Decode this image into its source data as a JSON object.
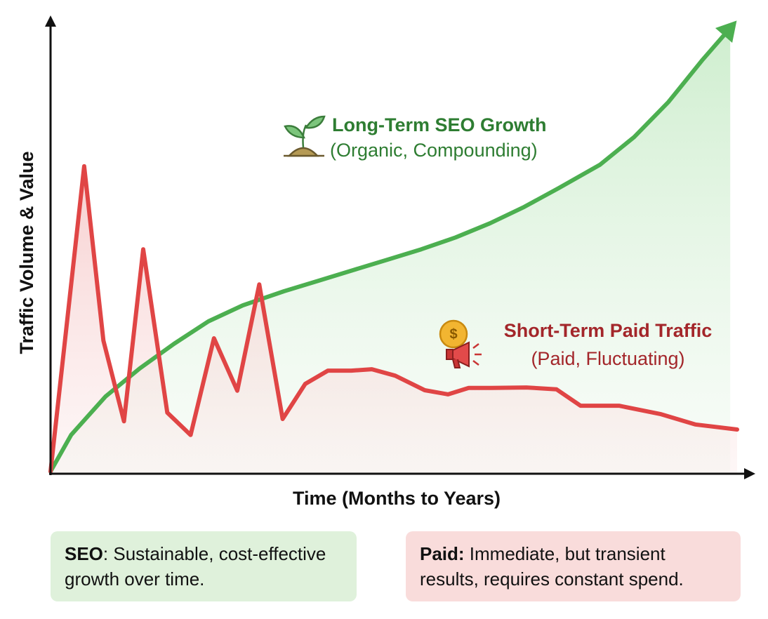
{
  "chart_data": {
    "type": "line",
    "x_label": "Time (Months to Years)",
    "y_label": "Traffic Volume & Value",
    "xlim": [
      0,
      100
    ],
    "ylim": [
      0,
      100
    ],
    "series": [
      {
        "name": "Long-Term SEO Growth",
        "subtitle": "(Organic, Compounding)",
        "color": "#4caf50",
        "label_color": "#2e7d32",
        "x": [
          0,
          3,
          8,
          13,
          18,
          23,
          28,
          34,
          39,
          44,
          49,
          54,
          59,
          64,
          69,
          74,
          80,
          85,
          90,
          95,
          99
        ],
        "values": [
          0.5,
          8.5,
          16.9,
          23.1,
          28.5,
          33.4,
          36.9,
          40,
          42.3,
          44.6,
          46.9,
          49.2,
          51.8,
          54.9,
          58.5,
          62.6,
          67.7,
          73.8,
          81.5,
          90.8,
          97.7
        ]
      },
      {
        "name": "Short-Term Paid Traffic",
        "subtitle": "(Paid, Fluctuating)",
        "color": "#e04545",
        "label_color": "#a3262a",
        "x": [
          0,
          4.9,
          7.7,
          10.7,
          13.5,
          17,
          20.4,
          23.8,
          27.2,
          30.4,
          33.8,
          37.1,
          40.4,
          43.8,
          46.8,
          50.2,
          54.5,
          57.9,
          60.9,
          64.2,
          69.3,
          73.7,
          77.2,
          82.8,
          88.8,
          93.9,
          100
        ],
        "values": [
          0.5,
          67.4,
          29.2,
          11.5,
          49.2,
          13.4,
          8.5,
          29.7,
          18.2,
          41.5,
          12,
          19.7,
          22.6,
          22.6,
          22.9,
          21.5,
          18.3,
          17.4,
          18.8,
          18.8,
          18.9,
          18.5,
          14.9,
          14.9,
          13.1,
          10.8,
          9.7
        ]
      }
    ],
    "notes": [
      {
        "bold": "SEO",
        "text": ": Sustainable, cost-effective growth over time."
      },
      {
        "bold": "Paid:",
        "text": " Immediate, but transient results, requires constant spend."
      }
    ]
  }
}
